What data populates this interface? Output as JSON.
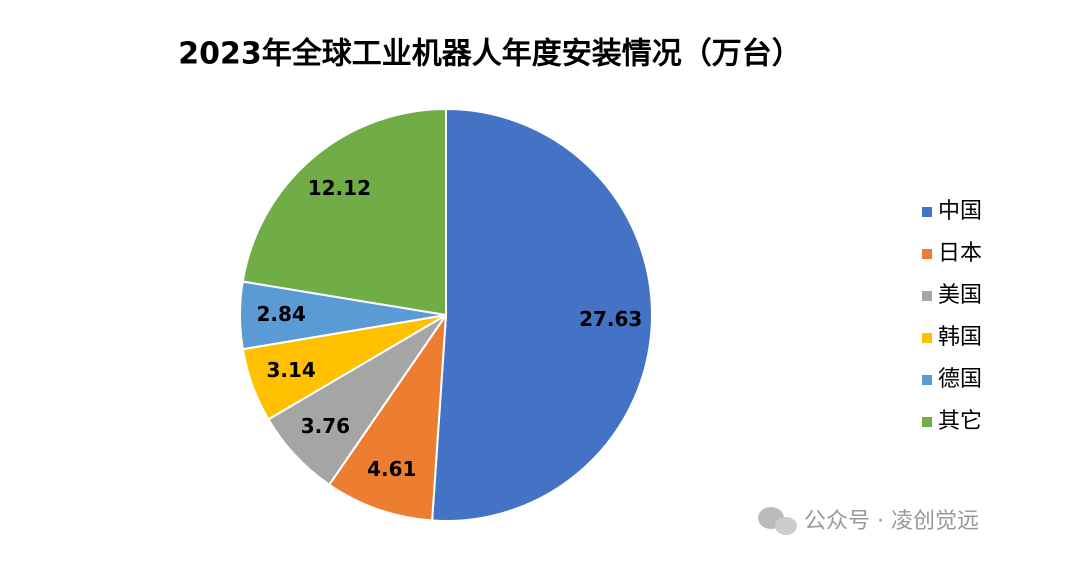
{
  "chart_data": {
    "type": "pie",
    "title": "2023年全球工业机器人年度安装情况（万台）",
    "categories": [
      "中国",
      "日本",
      "美国",
      "韩国",
      "德国",
      "其它"
    ],
    "values": [
      27.63,
      4.61,
      3.76,
      3.14,
      2.84,
      12.12
    ],
    "colors": [
      "#4472c4",
      "#ed7d31",
      "#a5a5a5",
      "#ffc000",
      "#5b9bd5",
      "#70ad47"
    ],
    "legend": "right",
    "watermark": "公众号 · 凌创觉远"
  }
}
